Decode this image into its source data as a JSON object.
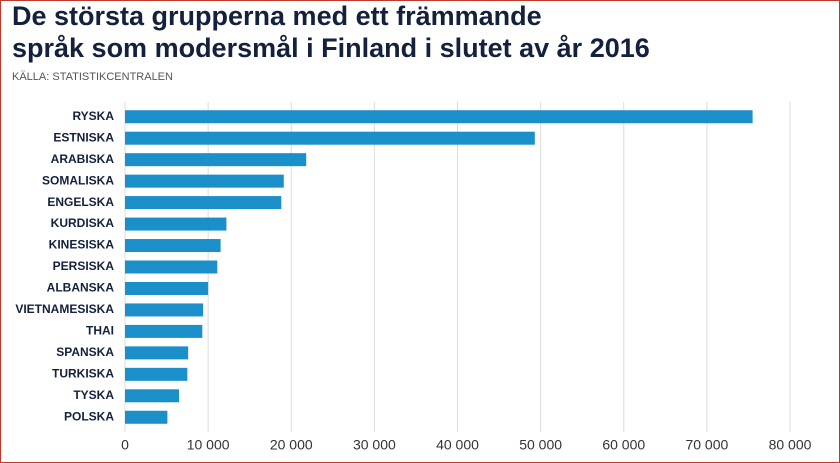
{
  "chart_data": {
    "type": "bar",
    "orientation": "horizontal",
    "title": [
      "De största grupperna med ett främmande",
      "språk som modersmål i Finland i slutet av år 2016"
    ],
    "subtitle": "KÄLLA: STATISTIKCENTRALEN",
    "categories": [
      "RYSKA",
      "ESTNISKA",
      "ARABISKA",
      "SOMALISKA",
      "ENGELSKA",
      "KURDISKA",
      "KINESISKA",
      "PERSISKA",
      "ALBANSKA",
      "VIETNAMESISKA",
      "THAI",
      "SPANSKA",
      "TURKISKA",
      "TYSKA",
      "POLSKA"
    ],
    "values": [
      75500,
      49300,
      21800,
      19100,
      18800,
      12200,
      11500,
      11100,
      10000,
      9400,
      9300,
      7600,
      7500,
      6500,
      5100
    ],
    "color": "#1a8fca",
    "xlim": [
      0,
      80000
    ],
    "xticks": [
      0,
      {
        "value": 10000,
        "label": "10 000"
      },
      {
        "value": 20000,
        "label": "20 000"
      },
      {
        "value": 30000,
        "label": "30 000"
      },
      {
        "value": 40000,
        "label": "40 000"
      },
      {
        "value": 50000,
        "label": "50 000"
      },
      {
        "value": 60000,
        "label": "60 000"
      },
      {
        "value": 70000,
        "label": "70 000"
      },
      {
        "value": 80000,
        "label": "80 000"
      }
    ],
    "grid": true
  }
}
